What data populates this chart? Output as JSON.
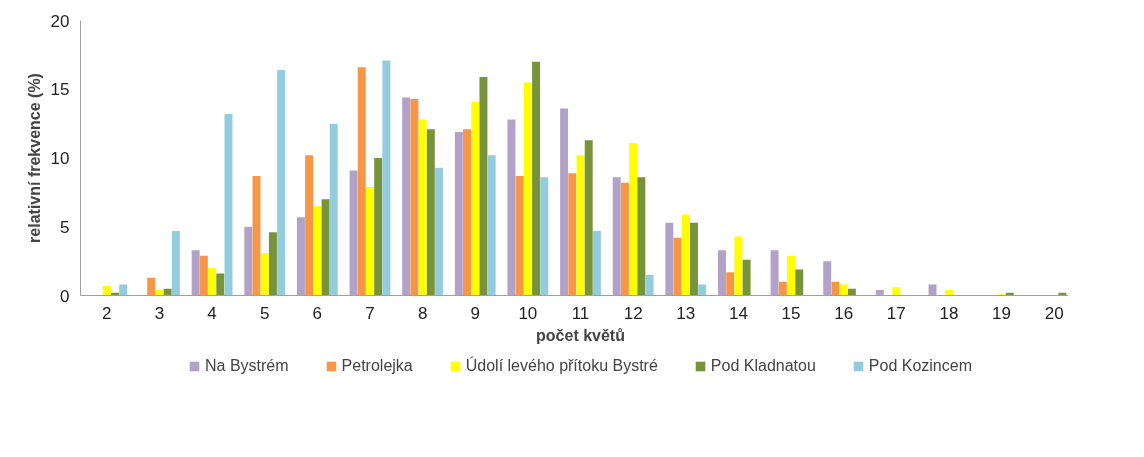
{
  "chart_data": {
    "type": "bar",
    "xlabel": "počet květů",
    "ylabel": "relativní frekvence (%)",
    "categories": [
      "2",
      "3",
      "4",
      "5",
      "6",
      "7",
      "8",
      "9",
      "10",
      "11",
      "12",
      "13",
      "14",
      "15",
      "16",
      "17",
      "18",
      "19",
      "20"
    ],
    "series": [
      {
        "name": "Na Bystrém",
        "color": "#b3a2c7",
        "values": [
          null,
          null,
          3.3,
          5.0,
          5.7,
          9.1,
          14.4,
          11.9,
          12.8,
          13.6,
          8.6,
          5.3,
          3.3,
          3.3,
          2.5,
          0.4,
          0.8,
          null,
          null
        ]
      },
      {
        "name": "Petrolejka",
        "color": "#f79646",
        "values": [
          null,
          1.3,
          2.9,
          8.7,
          10.2,
          16.6,
          14.3,
          12.1,
          8.7,
          8.9,
          8.2,
          4.2,
          1.7,
          1.0,
          1.0,
          null,
          null,
          null,
          null
        ]
      },
      {
        "name": "Údolí levého přítoku Bystré",
        "color": "#ffff00",
        "values": [
          0.7,
          0.4,
          2.0,
          3.1,
          6.5,
          7.9,
          12.8,
          14.1,
          15.5,
          10.2,
          11.1,
          5.9,
          4.3,
          2.9,
          0.8,
          0.6,
          0.4,
          0.1,
          null
        ]
      },
      {
        "name": "Pod Kladnatou",
        "color": "#77933c",
        "values": [
          0.2,
          0.5,
          1.6,
          4.6,
          7.0,
          10.0,
          12.1,
          15.9,
          17.0,
          11.3,
          8.6,
          5.3,
          2.6,
          1.9,
          0.5,
          null,
          null,
          0.2,
          0.2
        ]
      },
      {
        "name": "Pod Kozincem",
        "color": "#93cddd",
        "values": [
          0.8,
          4.7,
          13.2,
          16.4,
          12.5,
          17.1,
          9.3,
          10.2,
          8.6,
          4.7,
          1.5,
          0.8,
          null,
          null,
          null,
          null,
          null,
          null,
          null
        ]
      }
    ],
    "ylim": [
      0,
      20
    ],
    "yticks": [
      0,
      5,
      10,
      15,
      20
    ],
    "grid": false,
    "legend": "bottom"
  }
}
